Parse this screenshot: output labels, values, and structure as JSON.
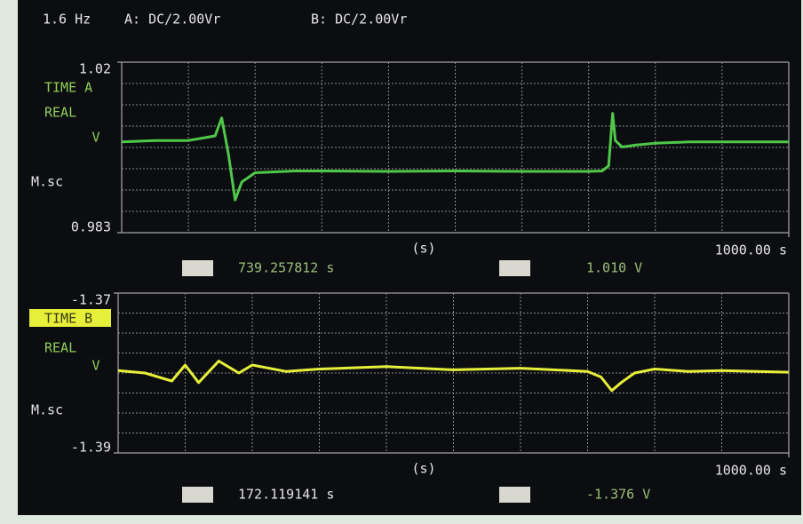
{
  "header": [
    "1.6 Hz",
    "A: DC/2.00Vr",
    "B: DC/2.00Vr"
  ],
  "chart_data": [
    {
      "type": "line",
      "channel": "TIME A",
      "mode": "REAL",
      "y_unit": "V",
      "x_scale": "M.sc",
      "x_label": "(s)",
      "xlim": [
        0,
        1000
      ],
      "xticks": [
        {
          "value": 1000,
          "label": "1000.00 s"
        }
      ],
      "ylim": [
        0.983,
        1.02
      ],
      "yticks": [
        1.02,
        0.983
      ],
      "grid": true,
      "color": "#4fc84a",
      "x": [
        0,
        50,
        100,
        120,
        140,
        150,
        160,
        170,
        180,
        200,
        230,
        260,
        300,
        400,
        500,
        600,
        700,
        720,
        730,
        736,
        740,
        750,
        770,
        800,
        850,
        900,
        950,
        1000
      ],
      "values": [
        1.0027,
        1.003,
        1.003,
        1.0035,
        1.004,
        1.0079,
        1.0,
        0.9901,
        0.994,
        0.996,
        0.9962,
        0.9964,
        0.9964,
        0.9963,
        0.9964,
        0.9963,
        0.9963,
        0.9964,
        0.9975,
        1.0089,
        1.003,
        1.0016,
        1.002,
        1.0024,
        1.0027,
        1.0027,
        1.0027,
        1.0027
      ],
      "annotations": [
        "739.257812 s",
        "1.010 V"
      ]
    },
    {
      "type": "line",
      "channel": "TIME B",
      "mode": "REAL",
      "y_unit": "V",
      "x_scale": "M.sc",
      "x_label": "(s)",
      "xlim": [
        0,
        1000
      ],
      "xticks": [
        {
          "value": 1000,
          "label": "1000.00 s"
        }
      ],
      "ylim": [
        -1.39,
        -1.37
      ],
      "yticks": [
        -1.37,
        -1.39
      ],
      "grid": true,
      "color": "#e6f03a",
      "x": [
        0,
        40,
        80,
        100,
        120,
        150,
        180,
        200,
        250,
        300,
        400,
        500,
        600,
        700,
        720,
        736,
        750,
        770,
        800,
        850,
        900,
        1000
      ],
      "values": [
        -1.3797,
        -1.38,
        -1.381,
        -1.379,
        -1.3812,
        -1.3785,
        -1.38,
        -1.379,
        -1.3798,
        -1.3795,
        -1.3792,
        -1.3796,
        -1.3794,
        -1.3798,
        -1.3805,
        -1.3822,
        -1.3812,
        -1.38,
        -1.3795,
        -1.3798,
        -1.3797,
        -1.3799
      ],
      "annotations": [
        "172.119141 s",
        "-1.376 V"
      ]
    }
  ]
}
